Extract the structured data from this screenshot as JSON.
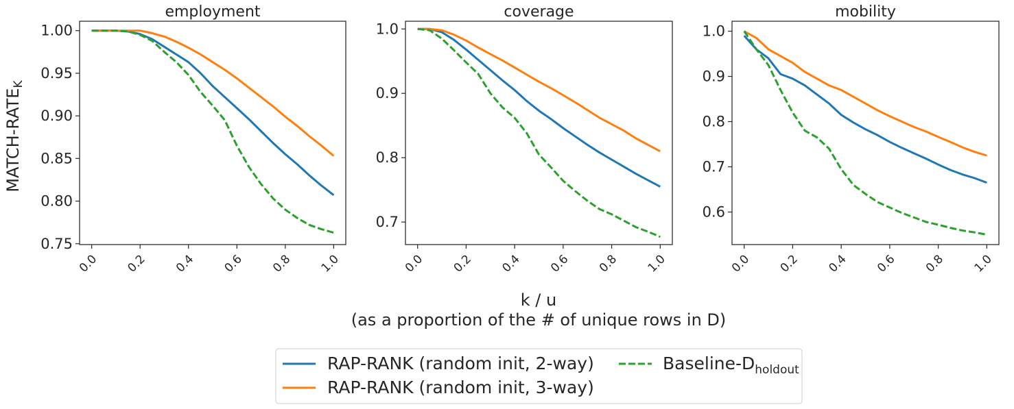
{
  "figure": {
    "ylabel": "MATCH-RATE",
    "ylabel_subscript": "K",
    "xlabel_line1": "k / u",
    "xlabel_line2": "(as a proportion of the # of unique rows in D)"
  },
  "legend": {
    "placement": "bottom-center",
    "entries": [
      {
        "label": "RAP-RANK (random init, 2-way)",
        "subscript": "",
        "color": "#1f77b4",
        "dash": "solid"
      },
      {
        "label": "RAP-RANK (random init, 3-way)",
        "subscript": "",
        "color": "#ff7f0e",
        "dash": "solid"
      },
      {
        "label": "Baseline-D",
        "subscript": "holdout",
        "color": "#2ca02c",
        "dash": "dashed"
      }
    ]
  },
  "chart_data": [
    {
      "type": "line",
      "title": "employment",
      "x": [
        0.0,
        0.05,
        0.1,
        0.15,
        0.2,
        0.25,
        0.3,
        0.35,
        0.4,
        0.45,
        0.5,
        0.55,
        0.6,
        0.65,
        0.7,
        0.75,
        0.8,
        0.85,
        0.9,
        0.95,
        1.0
      ],
      "xticks": [
        "0.0",
        "0.2",
        "0.4",
        "0.6",
        "0.8",
        "1.0"
      ],
      "yticks": [
        "0.75",
        "0.80",
        "0.85",
        "0.90",
        "0.95",
        "1.00"
      ],
      "xlim": [
        -0.05,
        1.05
      ],
      "ylim": [
        0.749,
        1.011
      ],
      "grid": false,
      "series": [
        {
          "name": "RAP-RANK (random init, 2-way)",
          "color": "#1f77b4",
          "dash": "solid",
          "values": [
            1.0,
            1.0,
            1.0,
            0.999,
            0.996,
            0.99,
            0.981,
            0.972,
            0.963,
            0.95,
            0.935,
            0.922,
            0.909,
            0.896,
            0.882,
            0.868,
            0.855,
            0.843,
            0.83,
            0.818,
            0.807
          ]
        },
        {
          "name": "RAP-RANK (random init, 3-way)",
          "color": "#ff7f0e",
          "dash": "solid",
          "values": [
            1.0,
            1.0,
            1.0,
            1.0,
            1.0,
            0.997,
            0.993,
            0.987,
            0.98,
            0.972,
            0.963,
            0.954,
            0.944,
            0.933,
            0.922,
            0.911,
            0.899,
            0.888,
            0.876,
            0.865,
            0.853
          ]
        },
        {
          "name": "Baseline-D holdout",
          "color": "#2ca02c",
          "dash": "dashed",
          "values": [
            1.0,
            1.0,
            1.0,
            0.999,
            0.995,
            0.988,
            0.975,
            0.963,
            0.948,
            0.928,
            0.912,
            0.895,
            0.865,
            0.84,
            0.82,
            0.803,
            0.79,
            0.78,
            0.772,
            0.767,
            0.763
          ]
        }
      ]
    },
    {
      "type": "line",
      "title": "coverage",
      "x": [
        0.0,
        0.05,
        0.1,
        0.15,
        0.2,
        0.25,
        0.3,
        0.35,
        0.4,
        0.45,
        0.5,
        0.55,
        0.6,
        0.65,
        0.7,
        0.75,
        0.8,
        0.85,
        0.9,
        0.95,
        1.0
      ],
      "xticks": [
        "0.0",
        "0.2",
        "0.4",
        "0.6",
        "0.8",
        "1.0"
      ],
      "yticks": [
        "0.7",
        "0.8",
        "0.9",
        "1.0"
      ],
      "xlim": [
        -0.05,
        1.05
      ],
      "ylim": [
        0.665,
        1.012
      ],
      "grid": false,
      "series": [
        {
          "name": "RAP-RANK (random init, 2-way)",
          "color": "#1f77b4",
          "dash": "solid",
          "values": [
            1.0,
            1.0,
            0.995,
            0.983,
            0.968,
            0.952,
            0.936,
            0.92,
            0.905,
            0.888,
            0.873,
            0.86,
            0.846,
            0.833,
            0.82,
            0.808,
            0.797,
            0.786,
            0.775,
            0.765,
            0.755
          ]
        },
        {
          "name": "RAP-RANK (random init, 3-way)",
          "color": "#ff7f0e",
          "dash": "solid",
          "values": [
            1.0,
            1.0,
            0.998,
            0.991,
            0.982,
            0.971,
            0.961,
            0.951,
            0.94,
            0.929,
            0.918,
            0.908,
            0.897,
            0.886,
            0.874,
            0.862,
            0.852,
            0.842,
            0.83,
            0.82,
            0.81
          ]
        },
        {
          "name": "Baseline-D holdout",
          "color": "#2ca02c",
          "dash": "dashed",
          "values": [
            1.0,
            0.998,
            0.985,
            0.967,
            0.948,
            0.93,
            0.9,
            0.878,
            0.862,
            0.838,
            0.805,
            0.785,
            0.764,
            0.748,
            0.733,
            0.72,
            0.712,
            0.702,
            0.692,
            0.685,
            0.677
          ]
        }
      ]
    },
    {
      "type": "line",
      "title": "mobility",
      "x": [
        0.0,
        0.05,
        0.1,
        0.15,
        0.2,
        0.25,
        0.3,
        0.35,
        0.4,
        0.45,
        0.5,
        0.55,
        0.6,
        0.65,
        0.7,
        0.75,
        0.8,
        0.85,
        0.9,
        0.95,
        1.0
      ],
      "xticks": [
        "0.0",
        "0.2",
        "0.4",
        "0.6",
        "0.8",
        "1.0"
      ],
      "yticks": [
        "0.6",
        "0.7",
        "0.8",
        "0.9",
        "1.0"
      ],
      "xlim": [
        -0.05,
        1.05
      ],
      "ylim": [
        0.528,
        1.022
      ],
      "grid": false,
      "series": [
        {
          "name": "RAP-RANK (random init, 2-way)",
          "color": "#1f77b4",
          "dash": "solid",
          "values": [
            0.99,
            0.96,
            0.94,
            0.905,
            0.895,
            0.88,
            0.86,
            0.84,
            0.815,
            0.798,
            0.783,
            0.77,
            0.755,
            0.742,
            0.73,
            0.718,
            0.705,
            0.693,
            0.683,
            0.675,
            0.665
          ]
        },
        {
          "name": "RAP-RANK (random init, 3-way)",
          "color": "#ff7f0e",
          "dash": "solid",
          "values": [
            1.0,
            0.985,
            0.96,
            0.945,
            0.93,
            0.91,
            0.895,
            0.88,
            0.87,
            0.855,
            0.84,
            0.825,
            0.812,
            0.8,
            0.788,
            0.778,
            0.766,
            0.755,
            0.743,
            0.733,
            0.725
          ]
        },
        {
          "name": "Baseline-D holdout",
          "color": "#2ca02c",
          "dash": "dashed",
          "values": [
            1.0,
            0.96,
            0.925,
            0.87,
            0.82,
            0.78,
            0.765,
            0.74,
            0.695,
            0.66,
            0.64,
            0.622,
            0.61,
            0.598,
            0.588,
            0.578,
            0.572,
            0.565,
            0.559,
            0.555,
            0.55
          ]
        }
      ]
    }
  ]
}
